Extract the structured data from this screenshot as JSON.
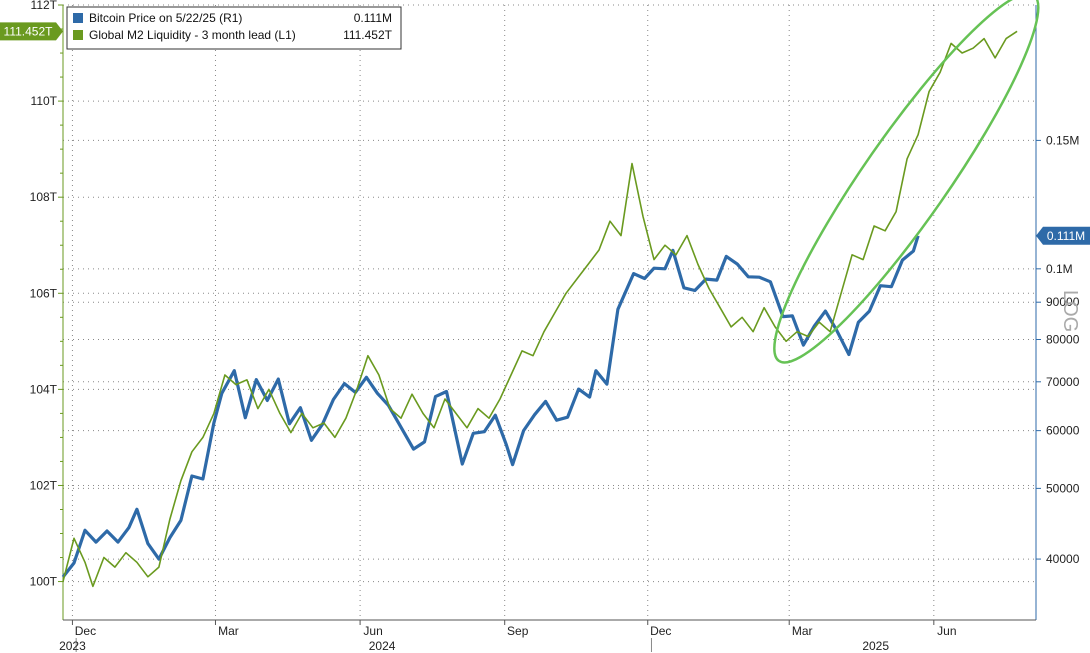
{
  "chart_data": {
    "type": "line",
    "title": "",
    "x_range": [
      "2023-11-25",
      "2025-08-05"
    ],
    "x_ticks": [
      {
        "label": "Dec",
        "date": "2023-12-01"
      },
      {
        "label": "Mar",
        "date": "2024-03-01"
      },
      {
        "label": "Jun",
        "date": "2024-06-01"
      },
      {
        "label": "Sep",
        "date": "2024-09-01"
      },
      {
        "label": "Dec",
        "date": "2024-12-01"
      },
      {
        "label": "Mar",
        "date": "2025-03-01"
      },
      {
        "label": "Jun",
        "date": "2025-06-01"
      }
    ],
    "x_year_labels": [
      {
        "label": "2023",
        "date": "2023-12-01"
      },
      {
        "label": "2024",
        "date": "2024-06-15"
      },
      {
        "label": "2025",
        "date": "2025-04-25"
      }
    ],
    "left_axis": {
      "label": "",
      "unit": "T",
      "range": [
        99.2,
        112
      ],
      "ticks": [
        100,
        102,
        104,
        106,
        108,
        110,
        112
      ],
      "tick_labels": [
        "100T",
        "102T",
        "104T",
        "106T",
        "108T",
        "110T",
        "112T"
      ]
    },
    "right_axis": {
      "label": "LOG",
      "scale": "log",
      "range": [
        33000,
        230000
      ],
      "ticks": [
        40000,
        50000,
        60000,
        70000,
        80000,
        90000,
        100000,
        150000
      ],
      "tick_labels": [
        "40000",
        "50000",
        "60000",
        "70000",
        "80000",
        "90000",
        "0.1M",
        "0.15M"
      ]
    },
    "grid": true,
    "legend_position": "top-left",
    "series": [
      {
        "name": "Bitcoin Price on 5/22/25 (R1)",
        "legend_value": "0.111M",
        "axis": "right",
        "color": "#2e6aa8",
        "last_value_label": "0.111M",
        "points": [
          [
            "2023-11-25",
            37800
          ],
          [
            "2023-12-02",
            39500
          ],
          [
            "2023-12-09",
            43800
          ],
          [
            "2023-12-16",
            42200
          ],
          [
            "2023-12-23",
            43700
          ],
          [
            "2023-12-30",
            42200
          ],
          [
            "2024-01-06",
            44200
          ],
          [
            "2024-01-11",
            46800
          ],
          [
            "2024-01-18",
            42000
          ],
          [
            "2024-01-25",
            40000
          ],
          [
            "2024-02-01",
            42800
          ],
          [
            "2024-02-08",
            45200
          ],
          [
            "2024-02-15",
            52000
          ],
          [
            "2024-02-22",
            51500
          ],
          [
            "2024-02-29",
            61500
          ],
          [
            "2024-03-05",
            67500
          ],
          [
            "2024-03-13",
            72500
          ],
          [
            "2024-03-20",
            62500
          ],
          [
            "2024-03-27",
            70500
          ],
          [
            "2024-04-03",
            66000
          ],
          [
            "2024-04-10",
            70600
          ],
          [
            "2024-04-17",
            61300
          ],
          [
            "2024-04-24",
            64500
          ],
          [
            "2024-05-01",
            58200
          ],
          [
            "2024-05-08",
            61200
          ],
          [
            "2024-05-15",
            66200
          ],
          [
            "2024-05-22",
            69600
          ],
          [
            "2024-05-29",
            67700
          ],
          [
            "2024-06-05",
            71000
          ],
          [
            "2024-06-12",
            67500
          ],
          [
            "2024-06-19",
            65000
          ],
          [
            "2024-06-26",
            61200
          ],
          [
            "2024-07-05",
            56600
          ],
          [
            "2024-07-12",
            57900
          ],
          [
            "2024-07-19",
            66800
          ],
          [
            "2024-07-26",
            67900
          ],
          [
            "2024-08-05",
            54000
          ],
          [
            "2024-08-12",
            59500
          ],
          [
            "2024-08-19",
            59800
          ],
          [
            "2024-08-26",
            63000
          ],
          [
            "2024-09-02",
            57400
          ],
          [
            "2024-09-06",
            53900
          ],
          [
            "2024-09-13",
            60000
          ],
          [
            "2024-09-20",
            63100
          ],
          [
            "2024-09-27",
            65800
          ],
          [
            "2024-10-04",
            62000
          ],
          [
            "2024-10-11",
            62600
          ],
          [
            "2024-10-18",
            68400
          ],
          [
            "2024-10-25",
            66700
          ],
          [
            "2024-10-29",
            72500
          ],
          [
            "2024-11-05",
            69500
          ],
          [
            "2024-11-12",
            88000
          ],
          [
            "2024-11-22",
            98500
          ],
          [
            "2024-11-29",
            97000
          ],
          [
            "2024-12-05",
            100200
          ],
          [
            "2024-12-12",
            100000
          ],
          [
            "2024-12-17",
            106000
          ],
          [
            "2024-12-24",
            94200
          ],
          [
            "2024-12-31",
            93400
          ],
          [
            "2025-01-07",
            96800
          ],
          [
            "2025-01-14",
            96500
          ],
          [
            "2025-01-20",
            104000
          ],
          [
            "2025-01-27",
            101500
          ],
          [
            "2025-02-03",
            97500
          ],
          [
            "2025-02-10",
            97400
          ],
          [
            "2025-02-17",
            96000
          ],
          [
            "2025-02-25",
            86000
          ],
          [
            "2025-03-03",
            86200
          ],
          [
            "2025-03-10",
            78600
          ],
          [
            "2025-03-17",
            83500
          ],
          [
            "2025-03-24",
            87500
          ],
          [
            "2025-03-31",
            82500
          ],
          [
            "2025-04-08",
            76300
          ],
          [
            "2025-04-14",
            84500
          ],
          [
            "2025-04-21",
            87500
          ],
          [
            "2025-04-28",
            94800
          ],
          [
            "2025-05-05",
            94500
          ],
          [
            "2025-05-12",
            102800
          ],
          [
            "2025-05-19",
            105800
          ],
          [
            "2025-05-22",
            111000
          ]
        ]
      },
      {
        "name": "Global M2 Liquidity - 3 month lead (L1)",
        "legend_value": "111.452T",
        "axis": "left",
        "color": "#6a9a1f",
        "last_value_label": "111.452T",
        "points": [
          [
            "2023-11-25",
            100.0
          ],
          [
            "2023-12-02",
            100.9
          ],
          [
            "2023-12-09",
            100.4
          ],
          [
            "2023-12-14",
            99.9
          ],
          [
            "2023-12-21",
            100.5
          ],
          [
            "2023-12-28",
            100.3
          ],
          [
            "2024-01-04",
            100.6
          ],
          [
            "2024-01-11",
            100.4
          ],
          [
            "2024-01-18",
            100.1
          ],
          [
            "2024-01-25",
            100.3
          ],
          [
            "2024-02-01",
            101.3
          ],
          [
            "2024-02-08",
            102.1
          ],
          [
            "2024-02-15",
            102.7
          ],
          [
            "2024-02-22",
            103.0
          ],
          [
            "2024-02-29",
            103.5
          ],
          [
            "2024-03-07",
            104.3
          ],
          [
            "2024-03-14",
            104.1
          ],
          [
            "2024-03-21",
            104.2
          ],
          [
            "2024-03-28",
            103.6
          ],
          [
            "2024-04-04",
            104.0
          ],
          [
            "2024-04-11",
            103.5
          ],
          [
            "2024-04-18",
            103.1
          ],
          [
            "2024-04-25",
            103.5
          ],
          [
            "2024-05-02",
            103.2
          ],
          [
            "2024-05-09",
            103.3
          ],
          [
            "2024-05-16",
            103.0
          ],
          [
            "2024-05-23",
            103.4
          ],
          [
            "2024-05-30",
            104.0
          ],
          [
            "2024-06-06",
            104.7
          ],
          [
            "2024-06-13",
            104.3
          ],
          [
            "2024-06-20",
            103.6
          ],
          [
            "2024-06-27",
            103.4
          ],
          [
            "2024-07-04",
            103.9
          ],
          [
            "2024-07-11",
            103.5
          ],
          [
            "2024-07-18",
            103.2
          ],
          [
            "2024-07-25",
            103.8
          ],
          [
            "2024-08-01",
            103.5
          ],
          [
            "2024-08-08",
            103.2
          ],
          [
            "2024-08-15",
            103.6
          ],
          [
            "2024-08-22",
            103.4
          ],
          [
            "2024-08-29",
            103.8
          ],
          [
            "2024-09-05",
            104.3
          ],
          [
            "2024-09-12",
            104.8
          ],
          [
            "2024-09-19",
            104.7
          ],
          [
            "2024-09-26",
            105.2
          ],
          [
            "2024-10-03",
            105.6
          ],
          [
            "2024-10-10",
            106.0
          ],
          [
            "2024-10-17",
            106.3
          ],
          [
            "2024-10-24",
            106.6
          ],
          [
            "2024-10-31",
            106.9
          ],
          [
            "2024-11-07",
            107.5
          ],
          [
            "2024-11-14",
            107.2
          ],
          [
            "2024-11-21",
            108.7
          ],
          [
            "2024-11-28",
            107.6
          ],
          [
            "2024-12-05",
            106.7
          ],
          [
            "2024-12-12",
            107.0
          ],
          [
            "2024-12-19",
            106.8
          ],
          [
            "2024-12-26",
            107.2
          ],
          [
            "2025-01-02",
            106.6
          ],
          [
            "2025-01-09",
            106.1
          ],
          [
            "2025-01-16",
            105.7
          ],
          [
            "2025-01-23",
            105.3
          ],
          [
            "2025-01-30",
            105.5
          ],
          [
            "2025-02-06",
            105.2
          ],
          [
            "2025-02-13",
            105.7
          ],
          [
            "2025-02-20",
            105.3
          ],
          [
            "2025-02-27",
            105.0
          ],
          [
            "2025-03-06",
            105.2
          ],
          [
            "2025-03-13",
            105.1
          ],
          [
            "2025-03-20",
            105.4
          ],
          [
            "2025-03-27",
            105.2
          ],
          [
            "2025-04-03",
            106.0
          ],
          [
            "2025-04-10",
            106.8
          ],
          [
            "2025-04-17",
            106.7
          ],
          [
            "2025-04-24",
            107.4
          ],
          [
            "2025-05-01",
            107.3
          ],
          [
            "2025-05-08",
            107.7
          ],
          [
            "2025-05-15",
            108.8
          ],
          [
            "2025-05-22",
            109.3
          ],
          [
            "2025-05-29",
            110.2
          ],
          [
            "2025-06-05",
            110.6
          ],
          [
            "2025-06-12",
            111.2
          ],
          [
            "2025-06-19",
            111.0
          ],
          [
            "2025-06-26",
            111.1
          ],
          [
            "2025-07-03",
            111.3
          ],
          [
            "2025-07-10",
            110.9
          ],
          [
            "2025-07-17",
            111.3
          ],
          [
            "2025-07-24",
            111.452
          ]
        ]
      }
    ],
    "annotations": [
      {
        "type": "ellipse",
        "color": "#66c255",
        "description": "highlight around recent 2025 rally"
      }
    ]
  }
}
